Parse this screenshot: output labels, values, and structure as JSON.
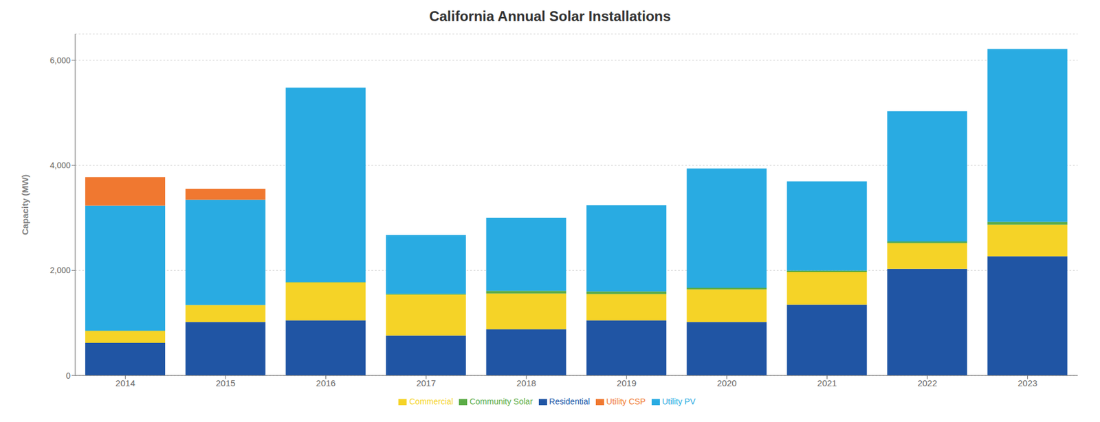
{
  "chart_data": {
    "type": "bar",
    "title": "California Annual Solar Installations",
    "ylabel": "Capacity (MW)",
    "categories": [
      "2014",
      "2015",
      "2016",
      "2017",
      "2018",
      "2019",
      "2020",
      "2021",
      "2022",
      "2023"
    ],
    "series": [
      {
        "name": "Residential",
        "color": "#2055a4",
        "values": [
          620,
          1020,
          1050,
          760,
          880,
          1050,
          1020,
          1350,
          2030,
          2270
        ]
      },
      {
        "name": "Commercial",
        "color": "#f5d327",
        "values": [
          230,
          320,
          720,
          780,
          680,
          500,
          620,
          620,
          490,
          600
        ]
      },
      {
        "name": "Community Solar",
        "color": "#5aab45",
        "values": [
          5,
          5,
          10,
          15,
          50,
          50,
          30,
          25,
          30,
          55
        ]
      },
      {
        "name": "Utility PV",
        "color": "#29abe2",
        "values": [
          2380,
          2000,
          3700,
          1120,
          1390,
          1640,
          2270,
          1700,
          2480,
          3290
        ]
      },
      {
        "name": "Utility CSP",
        "color": "#f07830",
        "values": [
          540,
          210,
          0,
          0,
          0,
          0,
          0,
          0,
          0,
          0
        ]
      }
    ],
    "ylim": [
      0,
      6500
    ],
    "yticks": [
      0,
      {
        "value": 2000,
        "label": "2,000"
      },
      {
        "value": 4000,
        "label": "4,000"
      },
      {
        "value": 6000,
        "label": "6,000"
      }
    ],
    "stacked": true,
    "grid": true,
    "legend": "bottom"
  }
}
